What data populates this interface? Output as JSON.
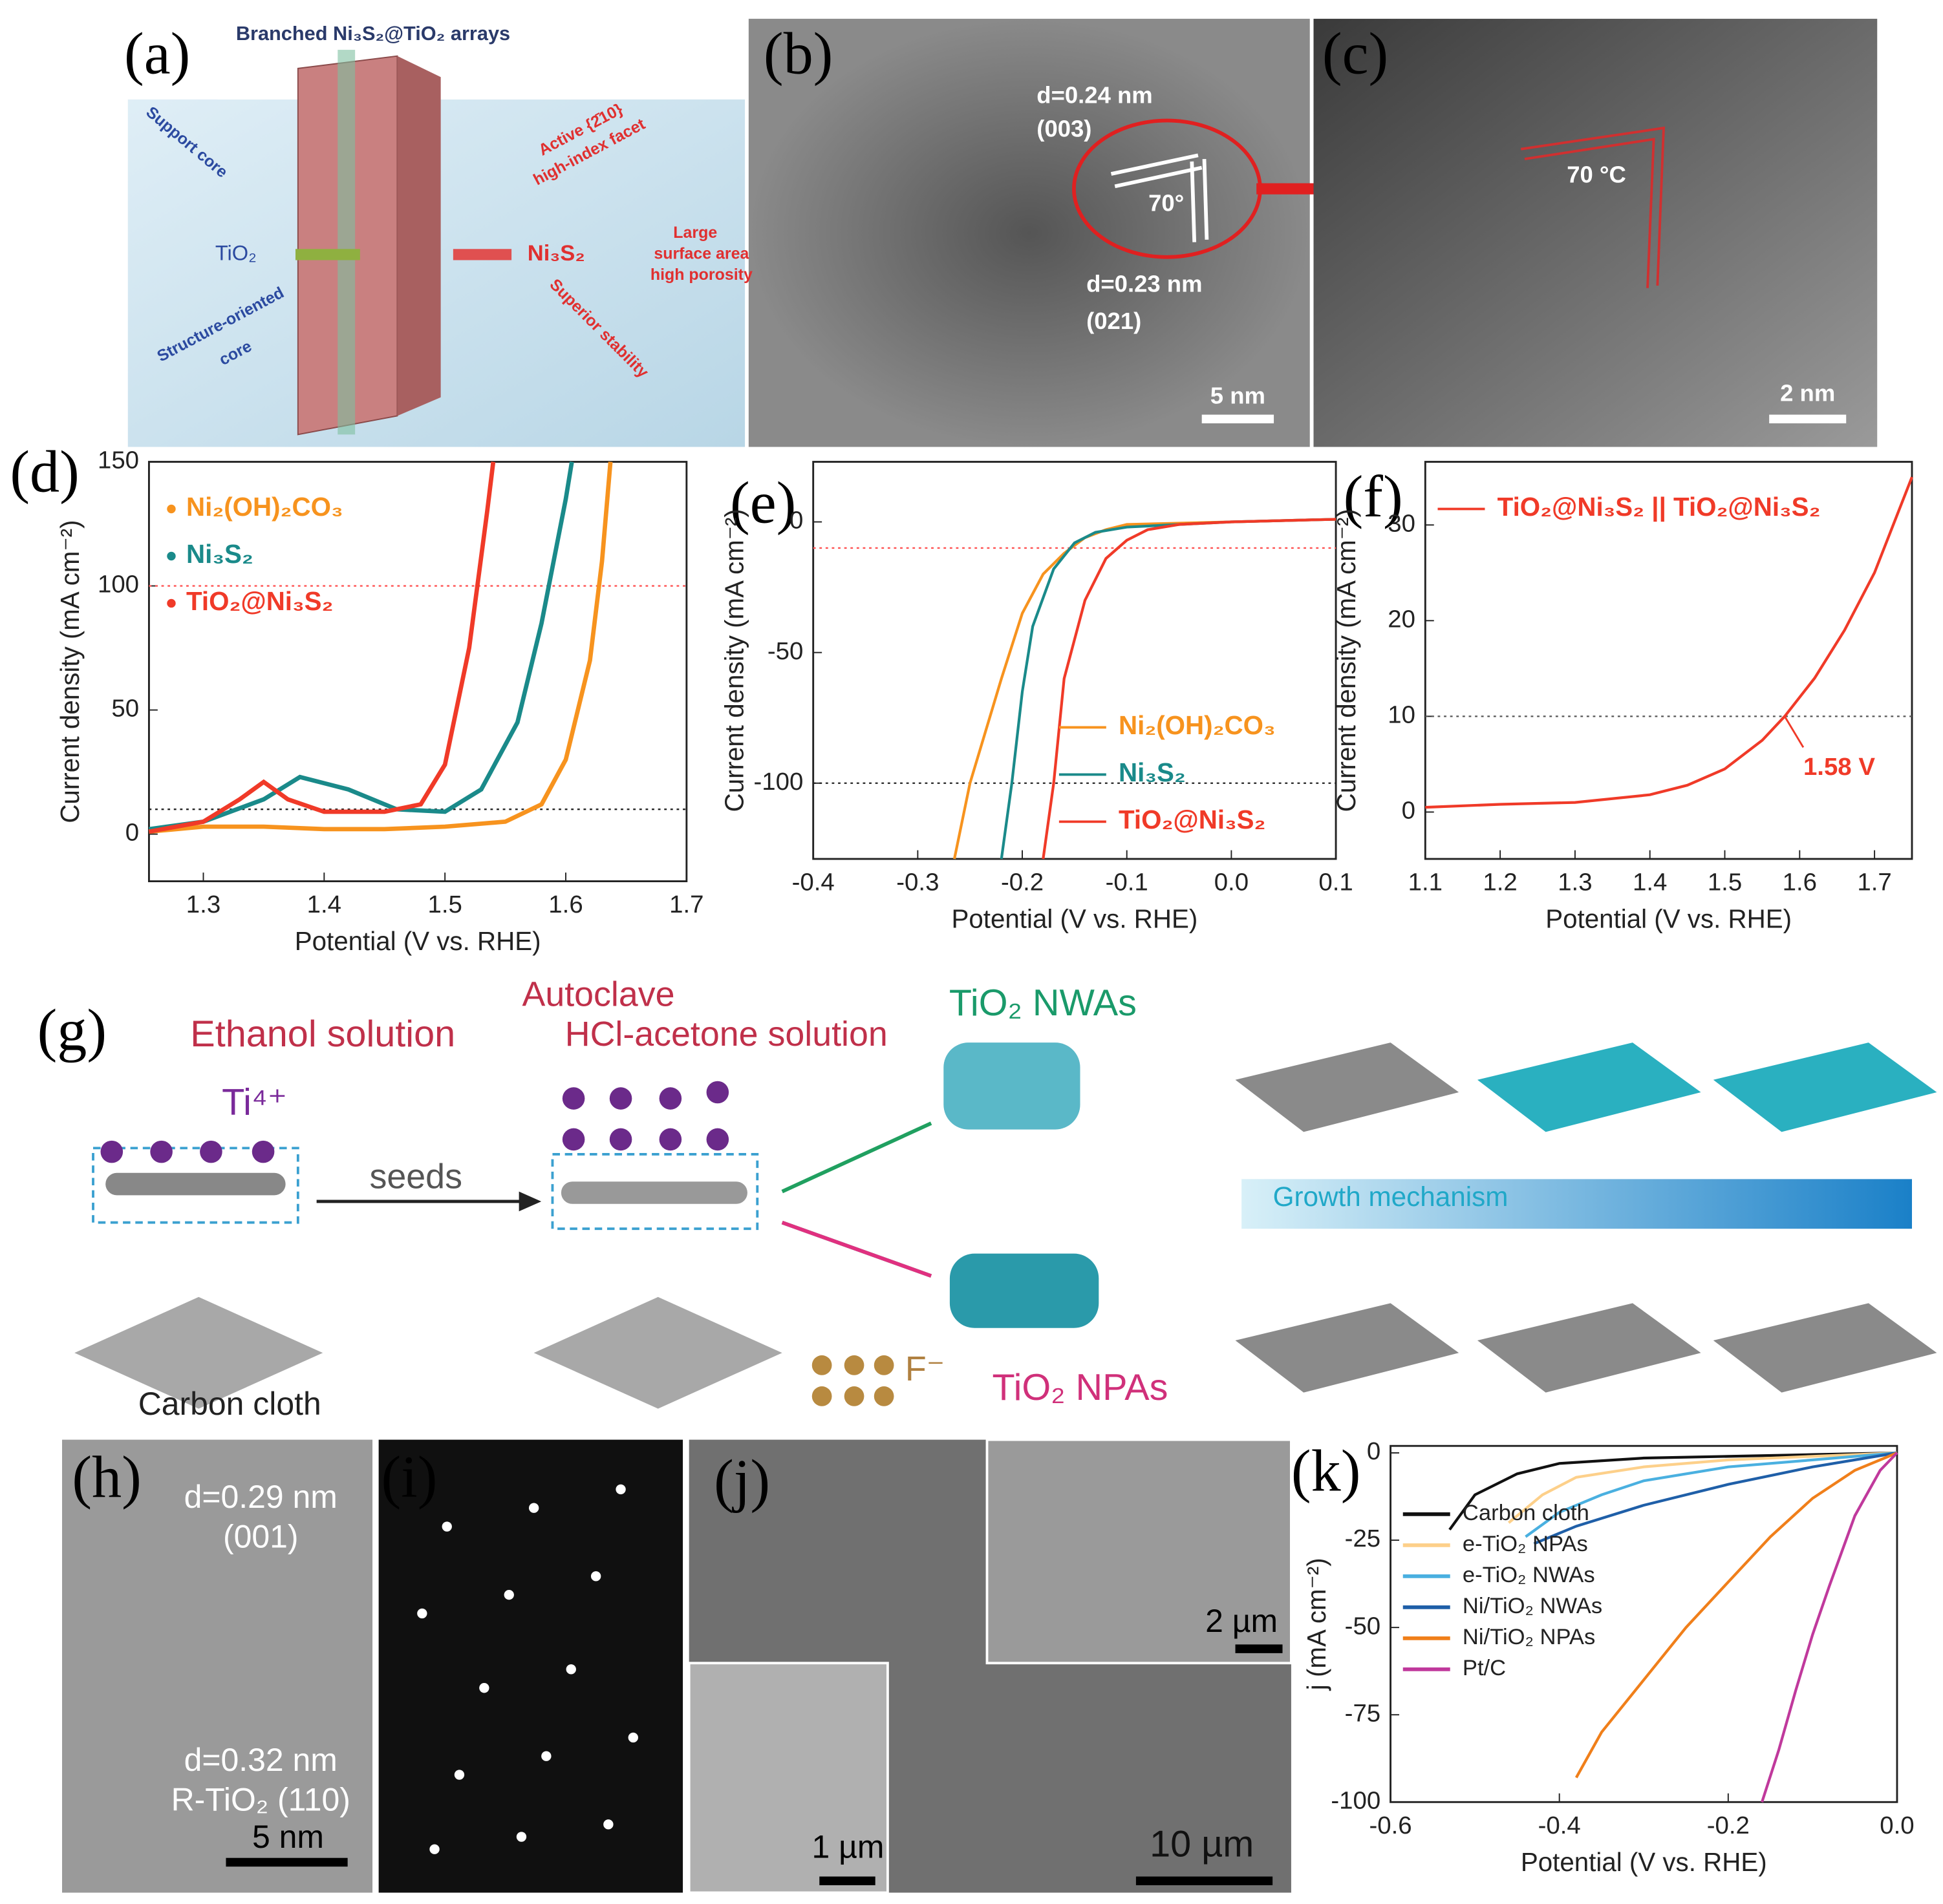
{
  "chart_data": [
    {
      "type": "line",
      "panel": "(d)",
      "xlabel": "Potential (V vs. RHE)",
      "ylabel": "Current density (mA cm⁻²)",
      "xlim": [
        1.255,
        1.7
      ],
      "ylim": [
        -19,
        150
      ],
      "xticks": [
        1.3,
        1.4,
        1.5,
        1.6,
        1.7
      ],
      "yticks": [
        0,
        50,
        100,
        150
      ],
      "legend": "upper left",
      "reference_lines": [
        {
          "value": 100,
          "color": "#ff5050"
        },
        {
          "value": 10,
          "color": "#222222"
        }
      ],
      "series": [
        {
          "name": "Ni₂(OH)₂CO₃",
          "color": "#f7931e",
          "x": [
            1.255,
            1.3,
            1.35,
            1.4,
            1.45,
            1.5,
            1.55,
            1.58,
            1.6,
            1.62,
            1.63,
            1.637
          ],
          "values": [
            1,
            3,
            3,
            2,
            2,
            3,
            5,
            12,
            30,
            70,
            110,
            150
          ]
        },
        {
          "name": "Ni₃S₂",
          "color": "#1a8a8a",
          "x": [
            1.255,
            1.3,
            1.35,
            1.38,
            1.42,
            1.46,
            1.5,
            1.53,
            1.56,
            1.58,
            1.6,
            1.605
          ],
          "values": [
            2,
            5,
            14,
            23,
            18,
            10,
            9,
            18,
            45,
            85,
            135,
            150
          ]
        },
        {
          "name": "TiO₂@Ni₃S₂",
          "color": "#f03a28",
          "x": [
            1.255,
            1.3,
            1.33,
            1.35,
            1.37,
            1.4,
            1.45,
            1.48,
            1.5,
            1.52,
            1.535,
            1.54
          ],
          "values": [
            1,
            5,
            14,
            21,
            14,
            9,
            9,
            12,
            28,
            75,
            130,
            150
          ]
        }
      ]
    },
    {
      "type": "line",
      "panel": "(e)",
      "xlabel": "Potential (V vs. RHE)",
      "ylabel": "Current density (mA cm⁻²)",
      "xlim": [
        -0.4,
        0.1
      ],
      "ylim": [
        -129,
        23
      ],
      "xticks": [
        -0.4,
        -0.3,
        -0.2,
        -0.1,
        {
          "value": 0,
          "label": "0.0"
        },
        0.1
      ],
      "yticks": [
        -100,
        -50,
        0
      ],
      "legend": "lower right",
      "reference_lines": [
        {
          "value": -10,
          "color": "#ff5050"
        },
        {
          "value": -100,
          "color": "#222222"
        }
      ],
      "series": [
        {
          "name": "Ni₂(OH)₂CO₃",
          "color": "#f7931e",
          "x": [
            -0.265,
            -0.25,
            -0.22,
            -0.2,
            -0.18,
            -0.16,
            -0.14,
            -0.12,
            -0.1,
            0,
            0.1
          ],
          "values": [
            -129,
            -100,
            -60,
            -35,
            -20,
            -12,
            -6,
            -3,
            -1,
            0,
            1
          ]
        },
        {
          "name": "Ni₃S₂",
          "color": "#1a8a8a",
          "x": [
            -0.22,
            -0.21,
            -0.2,
            -0.19,
            -0.17,
            -0.15,
            -0.13,
            -0.1,
            0,
            0.1
          ],
          "values": [
            -129,
            -100,
            -65,
            -40,
            -18,
            -8,
            -4,
            -2,
            0,
            1
          ]
        },
        {
          "name": "TiO₂@Ni₃S₂",
          "color": "#f03a28",
          "x": [
            -0.18,
            -0.17,
            -0.16,
            -0.14,
            -0.12,
            -0.1,
            -0.08,
            -0.05,
            0,
            0.1
          ],
          "values": [
            -129,
            -100,
            -60,
            -30,
            -14,
            -7,
            -3,
            -1,
            0,
            1
          ]
        }
      ]
    },
    {
      "type": "line",
      "panel": "(f)",
      "xlabel": "Potential (V vs. RHE)",
      "ylabel": "Current density (mA cm⁻²)",
      "xlim": [
        1.1,
        1.75
      ],
      "ylim": [
        -4.9,
        36.6
      ],
      "xticks": [
        1.1,
        1.2,
        1.3,
        1.4,
        1.5,
        1.6,
        1.7
      ],
      "yticks": [
        0,
        10,
        20,
        30
      ],
      "legend": "upper left",
      "reference_lines": [
        {
          "value": 10,
          "color": "#555555"
        }
      ],
      "annotation": {
        "text": "1.58 V",
        "x": 1.58,
        "y": 10
      },
      "series": [
        {
          "name": "TiO₂@Ni₃S₂ || TiO₂@Ni₃S₂",
          "color": "#f03a28",
          "x": [
            1.1,
            1.2,
            1.3,
            1.4,
            1.45,
            1.5,
            1.55,
            1.58,
            1.62,
            1.66,
            1.7,
            1.75
          ],
          "values": [
            0.5,
            0.8,
            1,
            1.8,
            2.8,
            4.5,
            7.5,
            10,
            14,
            19,
            25,
            35
          ]
        }
      ]
    },
    {
      "type": "line",
      "panel": "(k)",
      "xlabel": "Potential (V vs. RHE)",
      "ylabel": "j (mA cm⁻²)",
      "xlim": [
        -0.6,
        0
      ],
      "ylim": [
        -100,
        2
      ],
      "xticks": [
        -0.6,
        -0.4,
        -0.2,
        {
          "value": 0,
          "label": "0.0"
        }
      ],
      "yticks": [
        -100,
        -75,
        -50,
        -25,
        0
      ],
      "legend": "lower left",
      "series": [
        {
          "name": "Carbon cloth",
          "color": "#111111",
          "x": [
            -0.53,
            -0.5,
            -0.45,
            -0.4,
            -0.3,
            -0.2,
            -0.1,
            0
          ],
          "values": [
            -22,
            -12,
            -6,
            -3,
            -1.5,
            -1,
            -0.5,
            0
          ]
        },
        {
          "name": "e-TiO₂ NPAs",
          "color": "#fdd08a",
          "x": [
            -0.46,
            -0.42,
            -0.38,
            -0.3,
            -0.2,
            -0.1,
            0
          ],
          "values": [
            -20,
            -12,
            -7,
            -4,
            -2,
            -1,
            0
          ]
        },
        {
          "name": "e-TiO₂ NWAs",
          "color": "#4ab0e0",
          "x": [
            -0.44,
            -0.4,
            -0.35,
            -0.3,
            -0.2,
            -0.1,
            0
          ],
          "values": [
            -24,
            -17,
            -12,
            -8,
            -4,
            -2,
            0
          ]
        },
        {
          "name": "Ni/TiO₂ NWAs",
          "color": "#1f5fa8",
          "x": [
            -0.43,
            -0.38,
            -0.3,
            -0.2,
            -0.1,
            0
          ],
          "values": [
            -26,
            -21,
            -15,
            -9,
            -4,
            0
          ]
        },
        {
          "name": "Ni/TiO₂ NPAs",
          "color": "#f07f1a",
          "x": [
            -0.38,
            -0.35,
            -0.3,
            -0.25,
            -0.2,
            -0.15,
            -0.1,
            -0.05,
            0
          ],
          "values": [
            -93,
            -80,
            -65,
            -50,
            -37,
            -24,
            -13,
            -5,
            0
          ]
        },
        {
          "name": "Pt/C",
          "color": "#c0399c",
          "x": [
            -0.16,
            -0.14,
            -0.12,
            -0.1,
            -0.08,
            -0.05,
            -0.02,
            0
          ],
          "values": [
            -100,
            -85,
            -68,
            -52,
            -38,
            -18,
            -5,
            0
          ]
        }
      ]
    }
  ],
  "panels": {
    "a": {
      "label": "(a)",
      "texts": [
        "Branched Ni₃S₂@TiO₂ arrays",
        "Support core",
        "TiO₂",
        "Structure-oriented",
        "core",
        "Active {2̄10}",
        "high-index facet",
        "Ni₃S₂",
        "Large",
        "surface area",
        "high porosity",
        "Superior stability"
      ]
    },
    "b": {
      "label": "(b)",
      "texts": [
        "d=0.24 nm",
        "(003)",
        "70°",
        "d=0.23 nm",
        "(021)",
        "5 nm"
      ]
    },
    "c": {
      "label": "(c)",
      "texts": [
        "70 °C",
        "2 nm"
      ]
    },
    "g": {
      "label": "(g)",
      "texts": [
        "Ethanol solution",
        "Ti⁴⁺",
        "seeds",
        "Carbon cloth",
        "Autoclave",
        "HCl-acetone solution",
        "TiO₂ NWAs",
        "TiO₂ NPAs",
        "F⁻",
        "Growth mechanism"
      ]
    },
    "h": {
      "label": "(h)",
      "texts": [
        "d=0.29 nm",
        "(001)",
        "d=0.32 nm",
        "R-TiO₂ (110)",
        "5 nm"
      ]
    },
    "i": {
      "label": "(i)"
    },
    "j": {
      "label": "(j)",
      "texts": [
        "2 µm",
        "1 µm",
        "10 µm"
      ]
    }
  }
}
